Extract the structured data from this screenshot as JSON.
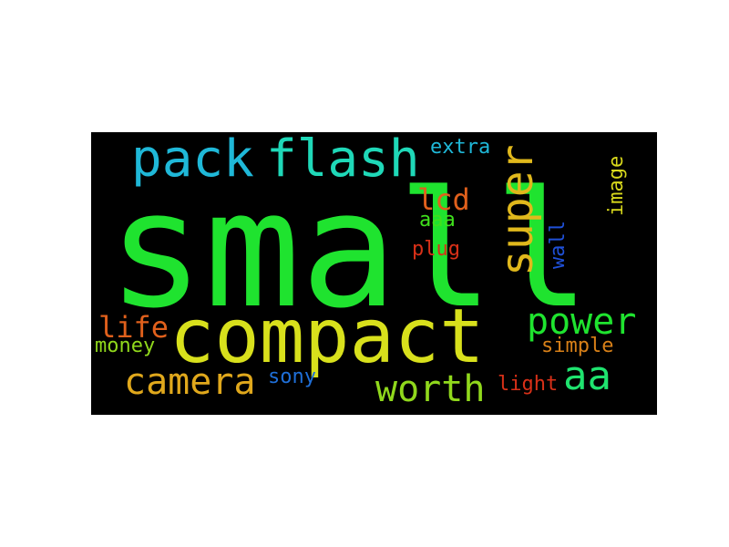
{
  "background": "#000000",
  "words": [
    {
      "id": "small",
      "text": "small",
      "color": "#1fe32f"
    },
    {
      "id": "compact",
      "text": "compact",
      "color": "#d8e01c"
    },
    {
      "id": "pack",
      "text": "pack",
      "color": "#1fb8d8"
    },
    {
      "id": "flash",
      "text": "flash",
      "color": "#1fd8b8"
    },
    {
      "id": "extra",
      "text": "extra",
      "color": "#1fb8d8"
    },
    {
      "id": "super",
      "text": "super",
      "color": "#e0b81c"
    },
    {
      "id": "image",
      "text": "image",
      "color": "#d8d81c"
    },
    {
      "id": "lcd",
      "text": "lcd",
      "color": "#e0601c"
    },
    {
      "id": "aaa",
      "text": "aaa",
      "color": "#3fe01c"
    },
    {
      "id": "plug",
      "text": "plug",
      "color": "#d83018"
    },
    {
      "id": "wall",
      "text": "wall",
      "color": "#1f50d8"
    },
    {
      "id": "power",
      "text": "power",
      "color": "#1fe32f"
    },
    {
      "id": "life",
      "text": "life",
      "color": "#e0601c"
    },
    {
      "id": "money",
      "text": "money",
      "color": "#90d81c"
    },
    {
      "id": "simple",
      "text": "simple",
      "color": "#d88018"
    },
    {
      "id": "camera",
      "text": "camera",
      "color": "#e0a81c"
    },
    {
      "id": "sony",
      "text": "sony",
      "color": "#1f6fd8"
    },
    {
      "id": "worth",
      "text": "worth",
      "color": "#90d81c"
    },
    {
      "id": "light",
      "text": "light",
      "color": "#d83018"
    },
    {
      "id": "aa",
      "text": "aa",
      "color": "#1fe36f"
    }
  ]
}
